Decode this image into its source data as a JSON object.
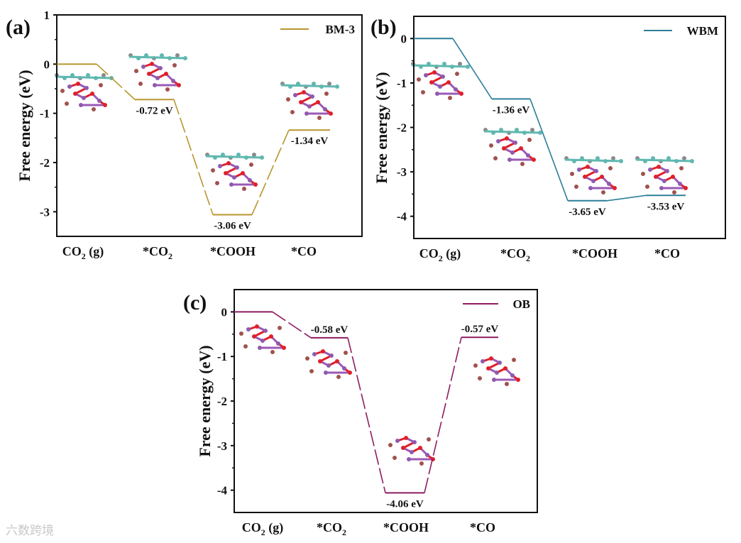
{
  "watermark": "六数跨境",
  "chart_data": [
    {
      "type": "line",
      "subtype": "free-energy-diagram",
      "panel_label": "(a)",
      "legend": "BM-3",
      "legend_position": "top-right",
      "color": "#b8962e",
      "ylabel": "Free energy (eV)",
      "ylim": [
        -3.5,
        1
      ],
      "yticks": [
        1,
        0,
        -1,
        -2,
        -3
      ],
      "ytick_labels": [
        "1",
        "0",
        "-1",
        "-2",
        "-3"
      ],
      "categories": [
        "CO2 (g)",
        "*CO2",
        "*COOH",
        "*CO"
      ],
      "values": [
        0,
        -0.72,
        -3.06,
        -1.34
      ],
      "value_labels": [
        "",
        "-0.72 eV",
        "-3.06 eV",
        "-1.34 eV"
      ],
      "label_side": [
        "",
        "below",
        "below",
        "below"
      ]
    },
    {
      "type": "line",
      "subtype": "free-energy-diagram",
      "panel_label": "(b)",
      "legend": "WBM",
      "legend_position": "top-right",
      "color": "#2b7f99",
      "ylabel": "Free energy (eV)",
      "ylim": [
        -4.5,
        0.5
      ],
      "yticks": [
        0,
        -1,
        -2,
        -3,
        -4
      ],
      "ytick_labels": [
        "0",
        "-1",
        "-2",
        "-3",
        "-4"
      ],
      "categories": [
        "CO2 (g)",
        "*CO2",
        "*COOH",
        "*CO"
      ],
      "values": [
        0,
        -1.36,
        -3.65,
        -3.53
      ],
      "value_labels": [
        "",
        "-1.36 eV",
        "-3.65 eV",
        "-3.53 eV"
      ],
      "label_side": [
        "",
        "below",
        "below",
        "below"
      ]
    },
    {
      "type": "line",
      "subtype": "free-energy-diagram",
      "panel_label": "(c)",
      "legend": "OB",
      "legend_position": "top-right",
      "color": "#8e1c62",
      "ylabel": "Free energy (eV)",
      "ylim": [
        -4.5,
        0.5
      ],
      "yticks": [
        0,
        -1,
        -2,
        -3,
        -4
      ],
      "ytick_labels": [
        "0",
        "-1",
        "-2",
        "-3",
        "-4"
      ],
      "categories": [
        "CO2 (g)",
        "*CO2",
        "*COOH",
        "*CO"
      ],
      "values": [
        0,
        -0.58,
        -4.06,
        -0.57
      ],
      "value_labels": [
        "",
        "-0.58 eV",
        "-4.06 eV",
        "-0.57 eV"
      ],
      "label_side": [
        "",
        "above",
        "below",
        "above"
      ]
    }
  ]
}
